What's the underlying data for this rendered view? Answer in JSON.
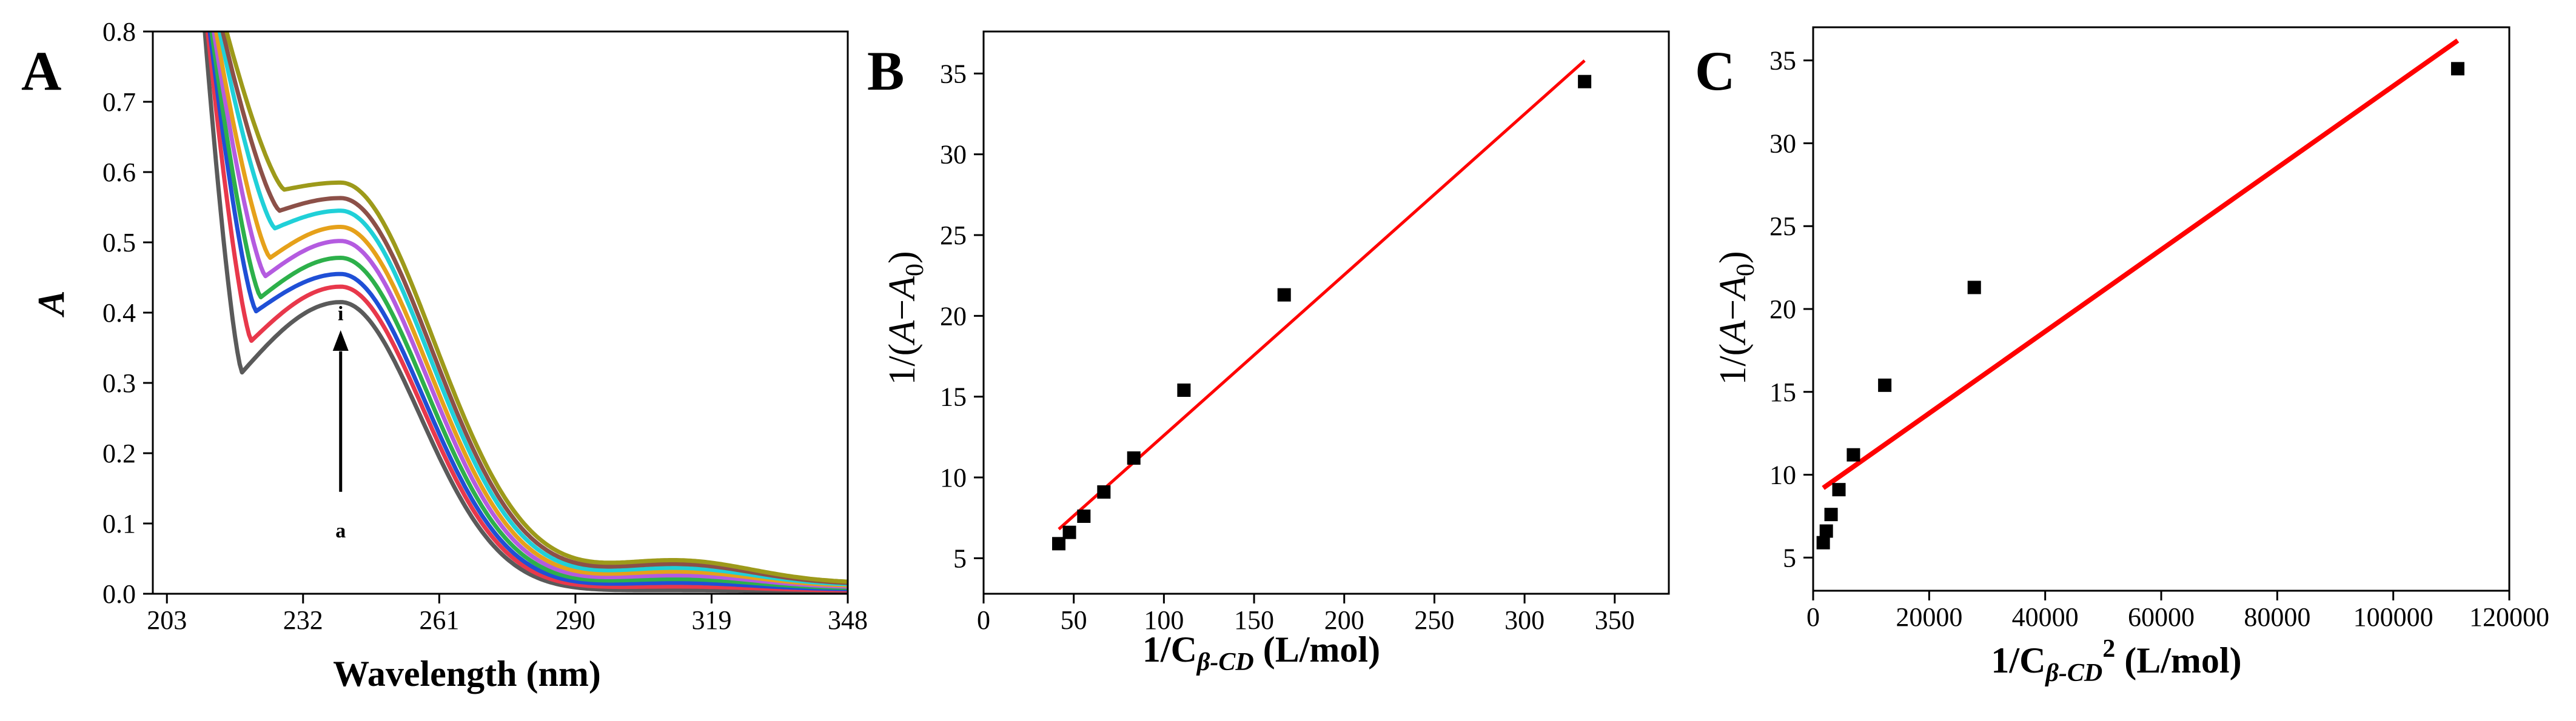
{
  "chart_data": [
    {
      "panel": "A",
      "type": "line",
      "xlabel": "Wavelength (nm)",
      "ylabel": "A",
      "xlim": [
        200,
        348
      ],
      "ylim": [
        0.0,
        0.8
      ],
      "xticks": [
        "203",
        "232",
        "261",
        "290",
        "319",
        "348"
      ],
      "yticks": [
        "0.0",
        "0.1",
        "0.2",
        "0.3",
        "0.4",
        "0.5",
        "0.6",
        "0.7",
        "0.8"
      ],
      "annotations": {
        "start": "a",
        "end": "i"
      },
      "series": [
        {
          "color": "#5a5a5a",
          "min_x": 219,
          "min_y": 0.315,
          "peak_x": 240,
          "peak_y": 0.415
        },
        {
          "color": "#e8384b",
          "min_x": 221,
          "min_y": 0.36,
          "peak_x": 240,
          "peak_y": 0.437
        },
        {
          "color": "#1f4fd6",
          "min_x": 222,
          "min_y": 0.402,
          "peak_x": 240,
          "peak_y": 0.455
        },
        {
          "color": "#2db04a",
          "min_x": 223,
          "min_y": 0.422,
          "peak_x": 240,
          "peak_y": 0.478
        },
        {
          "color": "#b45be0",
          "min_x": 224,
          "min_y": 0.452,
          "peak_x": 240,
          "peak_y": 0.502
        },
        {
          "color": "#e6a11a",
          "min_x": 225,
          "min_y": 0.478,
          "peak_x": 240,
          "peak_y": 0.522
        },
        {
          "color": "#20d0d8",
          "min_x": 226,
          "min_y": 0.52,
          "peak_x": 240,
          "peak_y": 0.545
        },
        {
          "color": "#8c5048",
          "min_x": 227,
          "min_y": 0.545,
          "peak_x": 240,
          "peak_y": 0.563
        },
        {
          "color": "#9d9a1a",
          "min_x": 228,
          "min_y": 0.575,
          "peak_x": 240,
          "peak_y": 0.585
        }
      ]
    },
    {
      "panel": "B",
      "type": "scatter",
      "xlabel": "1/Cβ-CD (L/mol)",
      "ylabel": "1/(A−A0)",
      "xlim": [
        0,
        380
      ],
      "ylim": [
        2.8,
        37.6
      ],
      "xticks": [
        "0",
        "50",
        "100",
        "150",
        "200",
        "250",
        "300",
        "350"
      ],
      "yticks": [
        "5",
        "10",
        "15",
        "20",
        "25",
        "30",
        "35"
      ],
      "x": [
        41.7,
        47.6,
        55.6,
        66.7,
        83.3,
        111.1,
        166.7,
        333.3
      ],
      "y": [
        5.9,
        6.6,
        7.6,
        9.1,
        11.2,
        15.4,
        21.3,
        34.5
      ],
      "fit": {
        "x": [
          41.7,
          333.3
        ],
        "y": [
          6.8,
          35.8
        ],
        "color": "#ff0000"
      }
    },
    {
      "panel": "C",
      "type": "scatter",
      "xlabel": "1/Cβ-CD² (L/mol)",
      "ylabel": "1/(A−A0)",
      "xlim": [
        0,
        120000
      ],
      "ylim": [
        3.0,
        37.0
      ],
      "xticks": [
        "0",
        "20000",
        "40000",
        "60000",
        "80000",
        "100000",
        "120000"
      ],
      "yticks": [
        "5",
        "10",
        "15",
        "20",
        "25",
        "30",
        "35"
      ],
      "x": [
        1739,
        2267,
        3091,
        4444,
        6944,
        12346,
        27778,
        111111
      ],
      "y": [
        5.9,
        6.6,
        7.6,
        9.1,
        11.2,
        15.4,
        21.3,
        34.5
      ],
      "fit": {
        "x": [
          1739,
          111111
        ],
        "y": [
          9.2,
          36.2
        ],
        "color": "#ff0000"
      }
    }
  ],
  "labels": {
    "panel_a": "A",
    "panel_b": "B",
    "panel_c": "C",
    "ylabel_a": "A",
    "ylabel_bc_prefix": "1/(",
    "ylabel_bc_A": "A",
    "ylabel_bc_minus": "−",
    "ylabel_bc_A0": "A",
    "ylabel_bc_sub0": "0",
    "ylabel_bc_suffix": ")",
    "xlabel_a": "Wavelength (nm)",
    "xlabel_bc_prefix": "1/C",
    "xlabel_bc_sub": "β-CD",
    "xlabel_c_sup": "2",
    "xlabel_bc_unit": " (L/mol)",
    "arrow_start": "a",
    "arrow_end": "i"
  }
}
